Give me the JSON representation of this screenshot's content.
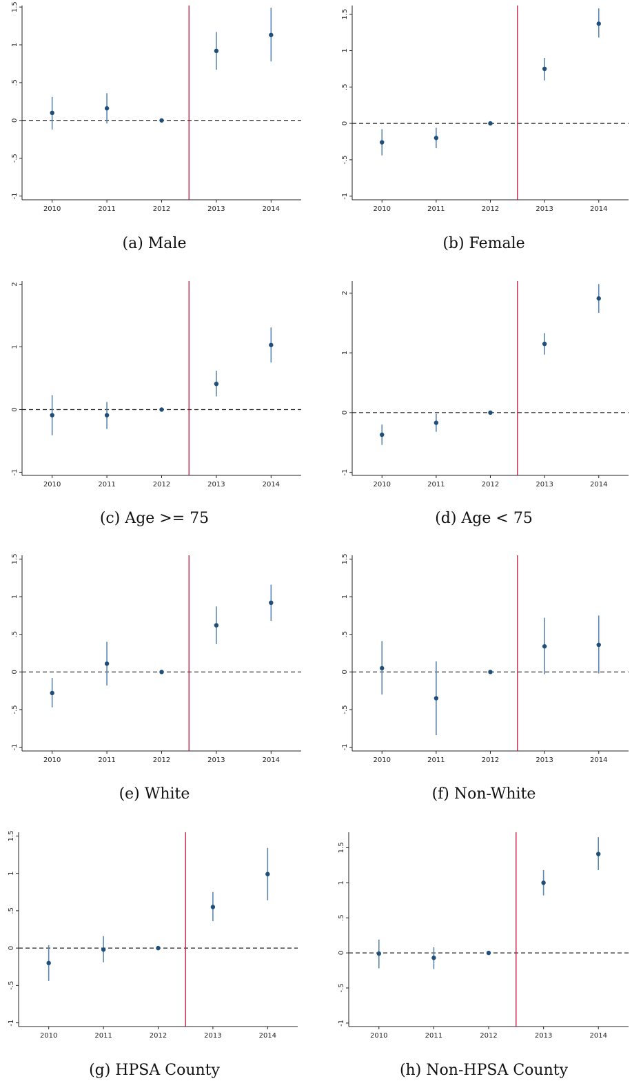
{
  "figure": {
    "colors": {
      "point": "#1f4e79",
      "ci": "#5c86ad",
      "treatment_line": "#c0143c",
      "zero_line": "#222222",
      "axis": "#222222"
    }
  },
  "chart_data": [
    {
      "type": "scatter",
      "caption": "(a)  Male",
      "x": [
        "2010",
        "2011",
        "2012",
        "2013",
        "2014"
      ],
      "y": [
        0.1,
        0.16,
        0.0,
        0.92,
        1.13
      ],
      "ci_low": [
        -0.12,
        -0.04,
        0.0,
        0.67,
        0.78
      ],
      "ci_high": [
        0.31,
        0.36,
        0.0,
        1.17,
        1.49
      ],
      "ylim": [
        -1.05,
        1.52
      ],
      "yticks": [
        -1,
        -0.5,
        0,
        0.5,
        1,
        1.5
      ],
      "ytick_labels": [
        "-1",
        "-.5",
        "0",
        ".5",
        "1",
        "1.5"
      ],
      "vline_after": "2012",
      "hline": 0
    },
    {
      "type": "scatter",
      "caption": "(b)  Female",
      "x": [
        "2010",
        "2011",
        "2012",
        "2013",
        "2014"
      ],
      "y": [
        -0.26,
        -0.2,
        0.0,
        0.75,
        1.37
      ],
      "ci_low": [
        -0.44,
        -0.34,
        0.0,
        0.59,
        1.18
      ],
      "ci_high": [
        -0.08,
        -0.06,
        0.0,
        0.9,
        1.58
      ],
      "ylim": [
        -1.05,
        1.62
      ],
      "yticks": [
        -1,
        -0.5,
        0,
        0.5,
        1,
        1.5
      ],
      "ytick_labels": [
        "-1",
        "-.5",
        "0",
        ".5",
        "1",
        "1.5"
      ],
      "vline_after": "2012",
      "hline": 0
    },
    {
      "type": "scatter",
      "caption": "(c)  Age >= 75",
      "x": [
        "2010",
        "2011",
        "2012",
        "2013",
        "2014"
      ],
      "y": [
        -0.09,
        -0.09,
        0.0,
        0.41,
        1.03
      ],
      "ci_low": [
        -0.41,
        -0.31,
        0.0,
        0.21,
        0.75
      ],
      "ci_high": [
        0.23,
        0.12,
        0.0,
        0.62,
        1.31
      ],
      "ylim": [
        -1.05,
        2.05
      ],
      "yticks": [
        -1,
        0,
        1,
        2
      ],
      "ytick_labels": [
        "-1",
        "0",
        "1",
        "2"
      ],
      "vline_after": "2012",
      "hline": 0
    },
    {
      "type": "scatter",
      "caption": "(d)  Age < 75",
      "x": [
        "2010",
        "2011",
        "2012",
        "2013",
        "2014"
      ],
      "y": [
        -0.37,
        -0.17,
        0.0,
        1.15,
        1.91
      ],
      "ci_low": [
        -0.54,
        -0.32,
        0.0,
        0.97,
        1.67
      ],
      "ci_high": [
        -0.2,
        -0.02,
        0.0,
        1.33,
        2.15
      ],
      "ylim": [
        -1.05,
        2.2
      ],
      "yticks": [
        -1,
        0,
        1,
        2
      ],
      "ytick_labels": [
        "-1",
        "0",
        "1",
        "2"
      ],
      "vline_after": "2012",
      "hline": 0
    },
    {
      "type": "scatter",
      "caption": "(e)  White",
      "x": [
        "2010",
        "2011",
        "2012",
        "2013",
        "2014"
      ],
      "y": [
        -0.28,
        0.11,
        0.0,
        0.62,
        0.92
      ],
      "ci_low": [
        -0.47,
        -0.18,
        0.0,
        0.37,
        0.68
      ],
      "ci_high": [
        -0.08,
        0.4,
        0.0,
        0.87,
        1.16
      ],
      "ylim": [
        -1.05,
        1.55
      ],
      "yticks": [
        -1,
        -0.5,
        0,
        0.5,
        1,
        1.5
      ],
      "ytick_labels": [
        "-1",
        "-.5",
        "0",
        ".5",
        "1",
        "1.5"
      ],
      "vline_after": "2012",
      "hline": 0
    },
    {
      "type": "scatter",
      "caption": "(f)  Non-White",
      "x": [
        "2010",
        "2011",
        "2012",
        "2013",
        "2014"
      ],
      "y": [
        0.05,
        -0.35,
        0.0,
        0.34,
        0.36
      ],
      "ci_low": [
        -0.3,
        -0.84,
        0.0,
        -0.03,
        -0.02
      ],
      "ci_high": [
        0.41,
        0.14,
        0.0,
        0.72,
        0.75
      ],
      "ylim": [
        -1.05,
        1.55
      ],
      "yticks": [
        -1,
        -0.5,
        0,
        0.5,
        1,
        1.5
      ],
      "ytick_labels": [
        "-1",
        "-.5",
        "0",
        ".5",
        "1",
        "1.5"
      ],
      "vline_after": "2012",
      "hline": 0
    },
    {
      "type": "scatter",
      "caption": "(g)  HPSA County",
      "x": [
        "2010",
        "2011",
        "2012",
        "2013",
        "2014"
      ],
      "y": [
        -0.2,
        -0.02,
        0.0,
        0.55,
        0.99
      ],
      "ci_low": [
        -0.44,
        -0.19,
        0.0,
        0.36,
        0.64
      ],
      "ci_high": [
        0.04,
        0.16,
        0.0,
        0.75,
        1.34
      ],
      "ylim": [
        -1.05,
        1.55
      ],
      "yticks": [
        -1,
        -0.5,
        0,
        0.5,
        1,
        1.5
      ],
      "ytick_labels": [
        "-1",
        "-.5",
        "0",
        ".5",
        "1",
        "1.5"
      ],
      "vline_after": "2012",
      "hline": 0
    },
    {
      "type": "scatter",
      "caption": "(h)  Non-HPSA County",
      "x": [
        "2010",
        "2011",
        "2012",
        "2013",
        "2014"
      ],
      "y": [
        -0.01,
        -0.07,
        0.0,
        1.0,
        1.41
      ],
      "ci_low": [
        -0.22,
        -0.23,
        0.0,
        0.82,
        1.18
      ],
      "ci_high": [
        0.19,
        0.08,
        0.0,
        1.18,
        1.65
      ],
      "ylim": [
        -1.05,
        1.72
      ],
      "yticks": [
        -1,
        -0.5,
        0,
        0.5,
        1,
        1.5
      ],
      "ytick_labels": [
        "-1",
        "-.5",
        "0",
        ".5",
        "1",
        "1.5"
      ],
      "vline_after": "2012",
      "hline": 0
    }
  ]
}
